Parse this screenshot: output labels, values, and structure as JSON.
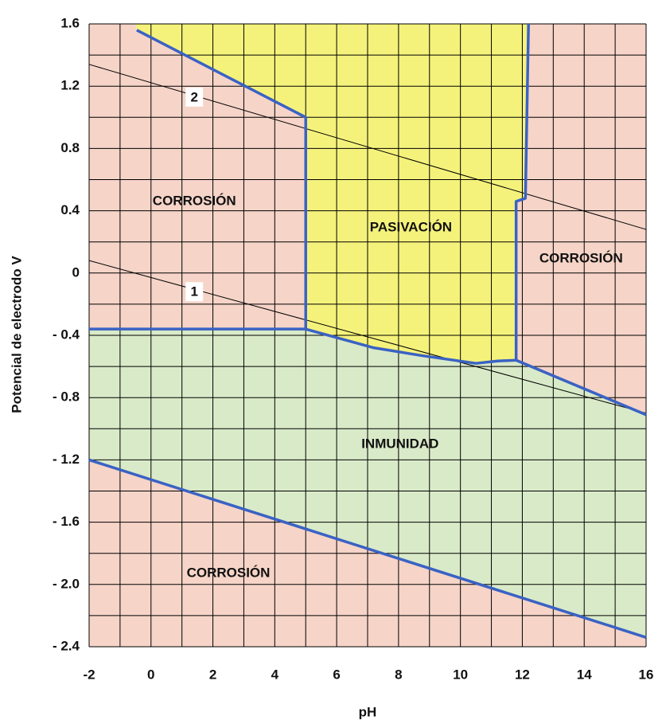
{
  "chart_data": {
    "type": "pourbaix",
    "xlabel": "pH",
    "ylabel": "Potencial de electrodo V",
    "xlim": [
      -2,
      16
    ],
    "ylim": [
      -2.4,
      1.6
    ],
    "xticks": [
      -2,
      0,
      2,
      4,
      6,
      8,
      10,
      12,
      14,
      16
    ],
    "yticks": [
      {
        "value": -2.4,
        "label": "- 2.4"
      },
      {
        "value": -2.0,
        "label": "- 2.0"
      },
      {
        "value": -1.6,
        "label": "- 1.6"
      },
      {
        "value": -1.2,
        "label": "- 1.2"
      },
      {
        "value": -0.8,
        "label": "- 0.8"
      },
      {
        "value": -0.4,
        "label": "- 0.4"
      },
      0,
      0.4,
      0.8,
      1.2,
      1.6
    ],
    "xminor": [
      -1,
      1,
      3,
      5,
      7,
      9,
      11,
      13,
      15
    ],
    "yminor": [
      -2.2,
      -1.8,
      -1.4,
      -1.0,
      -0.6,
      -0.2,
      0.2,
      0.6,
      1.0,
      1.4
    ],
    "grid": true,
    "regions": [
      {
        "name": "CORROSIÓN",
        "color": "#f6d4c8",
        "x": [
          -2,
          -0.5,
          -0.46,
          5,
          5,
          -2
        ],
        "y": [
          1.6,
          1.6,
          1.56,
          1.0,
          -0.36,
          -0.36
        ]
      },
      {
        "name": "PASIVACIÓN",
        "color": "#f5f27c",
        "x": [
          -0.5,
          -0.46,
          5,
          5,
          7.2,
          8.75,
          10.5,
          11.2,
          11.8,
          11.8,
          12.1,
          12.2
        ],
        "y": [
          1.6,
          1.56,
          1.0,
          -0.36,
          -0.48,
          -0.53,
          -0.58,
          -0.565,
          -0.56,
          0.46,
          0.48,
          1.6
        ]
      },
      {
        "name": "CORROSIÓN",
        "color": "#f6d4c8",
        "x": [
          12.2,
          12.1,
          11.8,
          11.8,
          16,
          16
        ],
        "y": [
          1.6,
          0.48,
          0.46,
          -0.56,
          -0.91,
          1.6
        ]
      },
      {
        "name": "INMUNIDAD",
        "color": "#d9eac8",
        "x": [
          -2,
          5,
          7.2,
          8.75,
          10.5,
          11.2,
          11.8,
          16,
          16,
          -2
        ],
        "y": [
          -0.36,
          -0.36,
          -0.48,
          -0.53,
          -0.58,
          -0.565,
          -0.56,
          -0.91,
          -2.34,
          -1.2
        ]
      },
      {
        "name": "CORROSIÓN",
        "color": "#f6d4c8",
        "x": [
          -2,
          16,
          16,
          -2
        ],
        "y": [
          -1.2,
          -2.34,
          -2.4,
          -2.4
        ]
      }
    ],
    "boundaries": [
      {
        "color": "#3a62c4",
        "x": [
          -0.46,
          5,
          5,
          -2
        ],
        "y": [
          1.56,
          1.0,
          -0.36,
          -0.36
        ]
      },
      {
        "color": "#3a62c4",
        "x": [
          5,
          7.2,
          8.75,
          10.5,
          11.2,
          11.8,
          11.8,
          12.1,
          12.2
        ],
        "y": [
          -0.36,
          -0.48,
          -0.53,
          -0.58,
          -0.565,
          -0.56,
          0.46,
          0.48,
          1.6
        ]
      },
      {
        "color": "#3a62c4",
        "x": [
          11.8,
          16
        ],
        "y": [
          -0.56,
          -0.91
        ]
      },
      {
        "color": "#3a62c4",
        "x": [
          -2,
          16
        ],
        "y": [
          -1.2,
          -2.34
        ]
      }
    ],
    "series": [
      {
        "name": "1",
        "color": "#000000",
        "x": [
          -2,
          16
        ],
        "values": [
          0.08,
          -0.9
        ]
      },
      {
        "name": "2",
        "color": "#000000",
        "x": [
          -2,
          16
        ],
        "values": [
          1.34,
          0.28
        ]
      }
    ]
  }
}
